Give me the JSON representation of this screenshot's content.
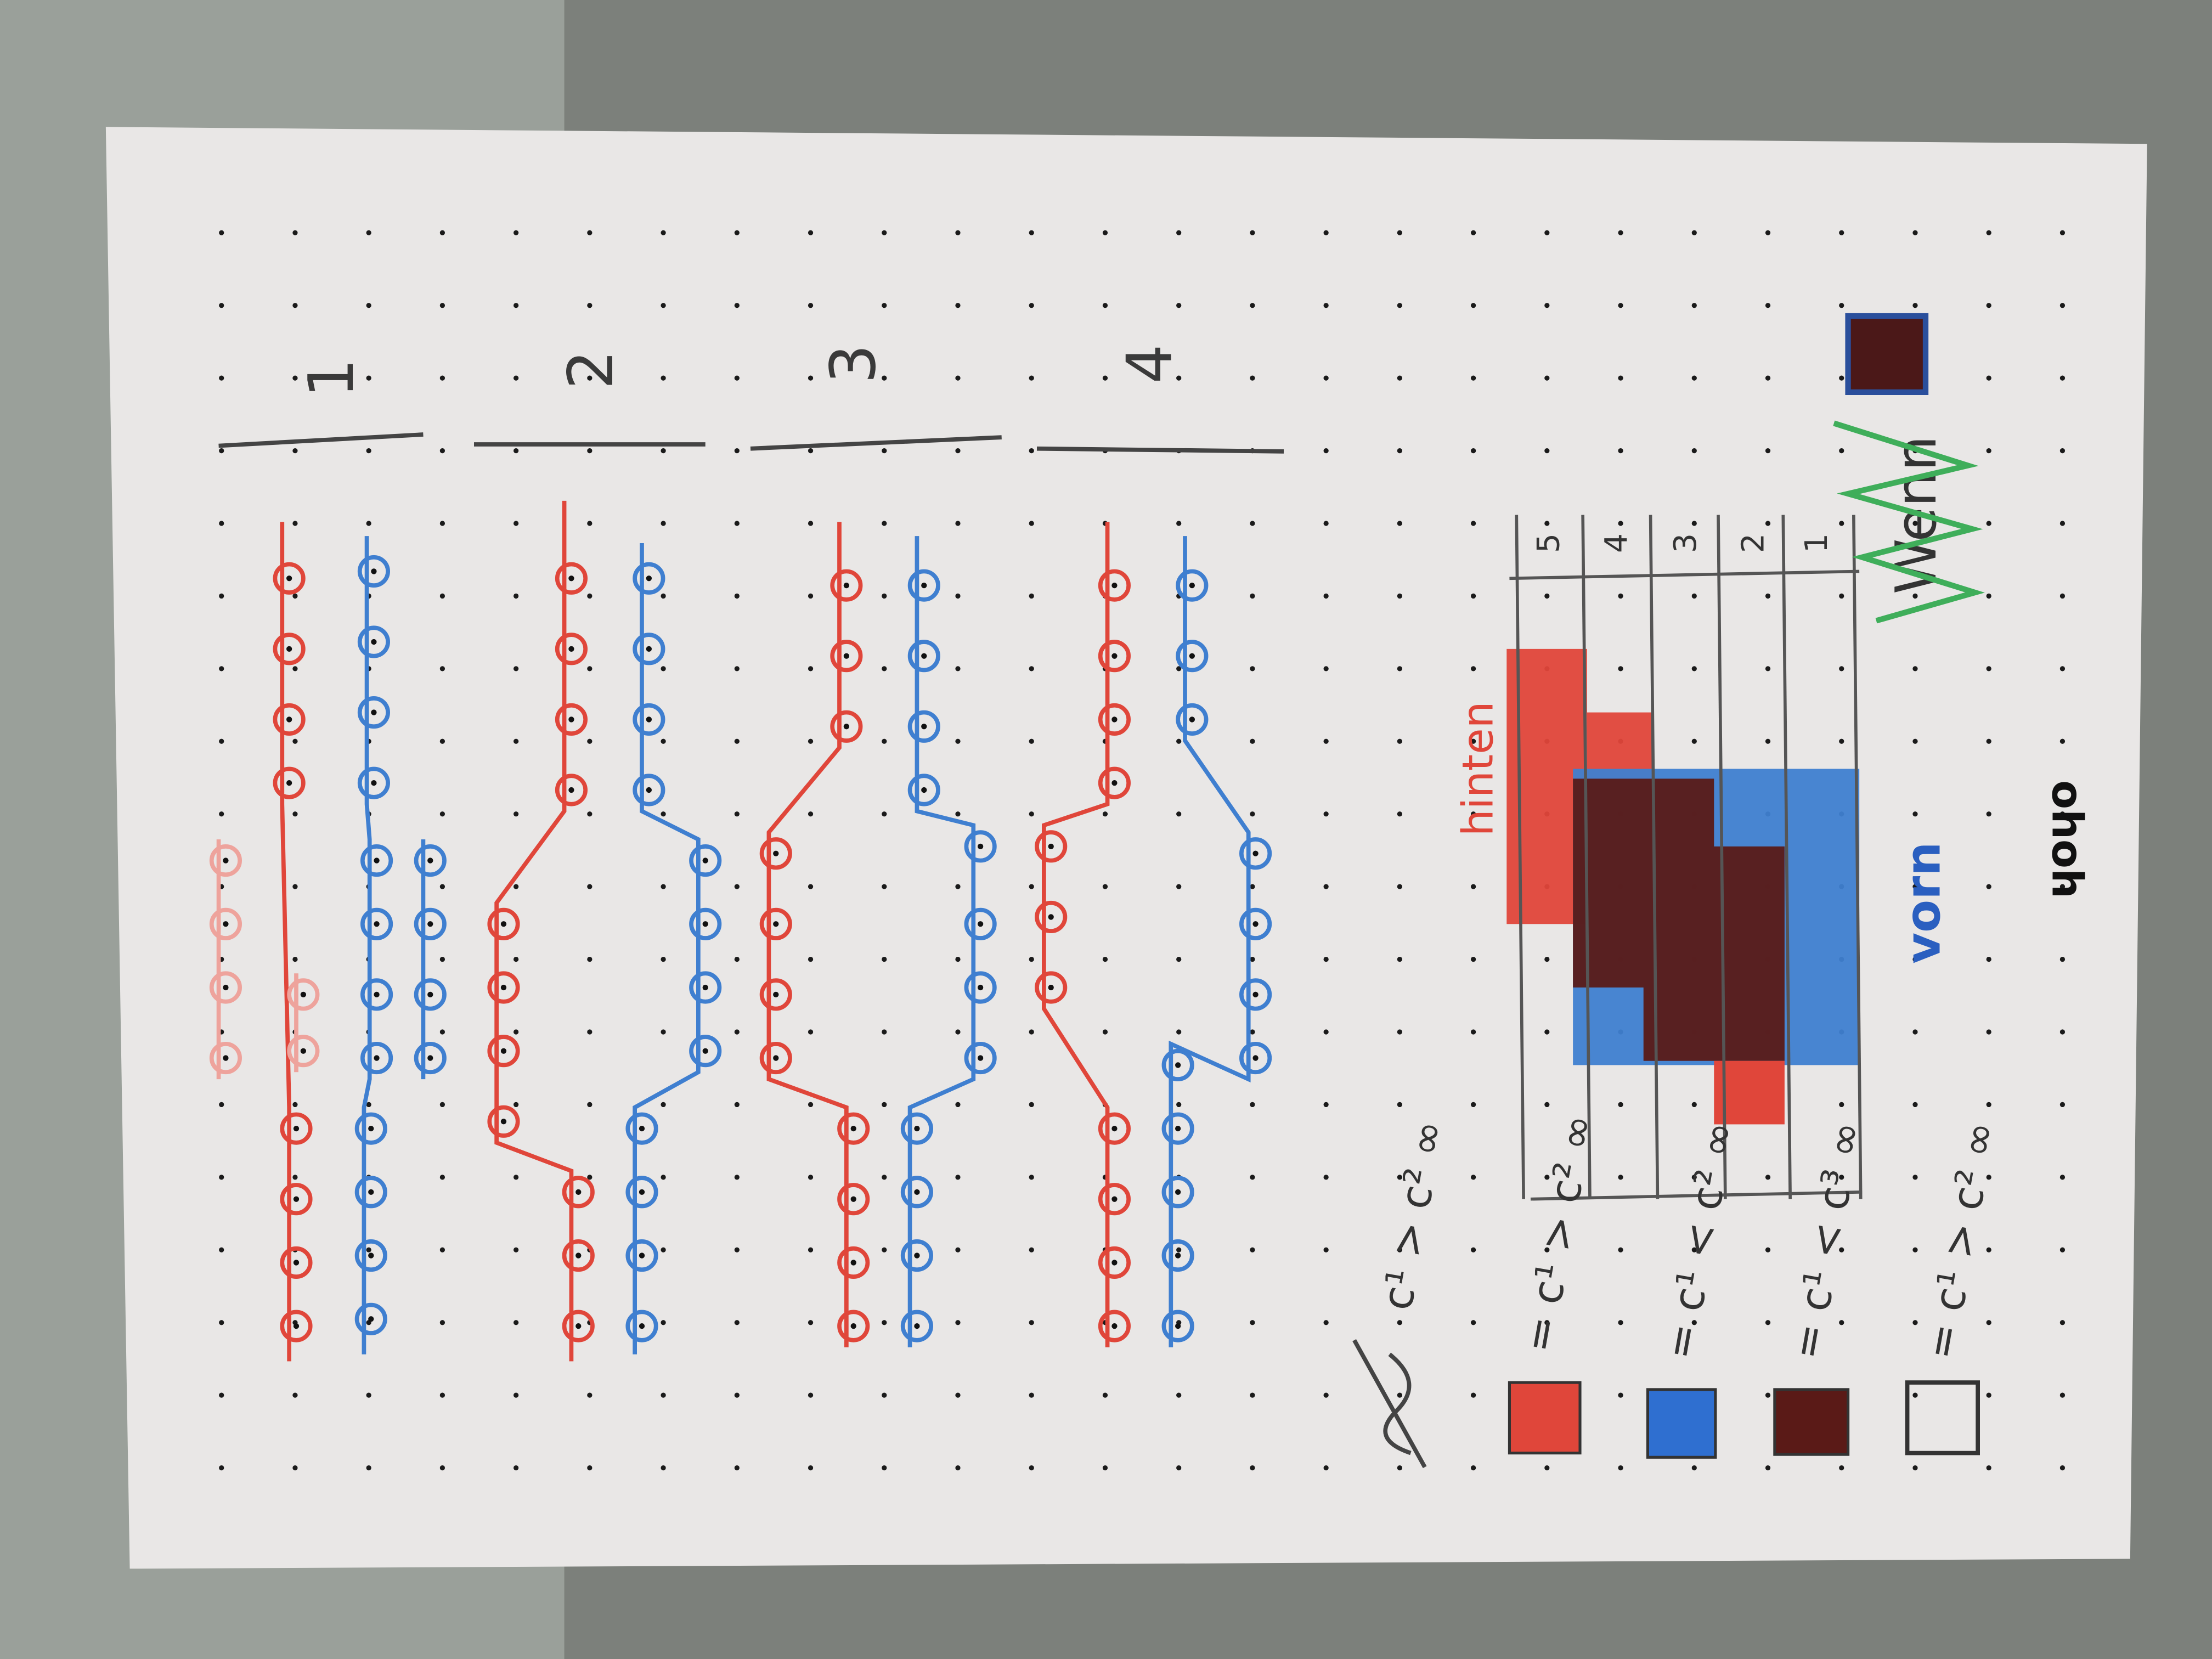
{
  "background": {
    "table_color": "#7c807b",
    "table_left_color": "#9aa09a",
    "paper_color": "#e9e7e6",
    "dot_color": "#1a1a1a"
  },
  "colors": {
    "red": "#e0463a",
    "blue": "#3f7fd0",
    "dark": "#5a1a17",
    "pencil": "#3a3a3a",
    "green": "#3fae5a"
  },
  "sections": [
    {
      "label": "1"
    },
    {
      "label": "2"
    },
    {
      "label": "3"
    },
    {
      "label": "4"
    }
  ],
  "chart": {
    "row_labels": [
      "5",
      "4",
      "3",
      "2",
      "1"
    ],
    "label_back": "hinten",
    "label_front": "vorn"
  },
  "legend": [
    {
      "color": "red",
      "text": "= c¹ > c² ∞"
    },
    {
      "color": "blue",
      "text": "= c¹ < c² ∞"
    },
    {
      "color": "dark",
      "text": "= c¹ < c³ ∞"
    },
    {
      "color": "empty",
      "text": "= c¹ > c² ∞"
    }
  ],
  "scribbles": {
    "pencil_note": "c¹ > c² ∞",
    "green_word": "Wenn"
  },
  "printed_mark": "ohoh"
}
